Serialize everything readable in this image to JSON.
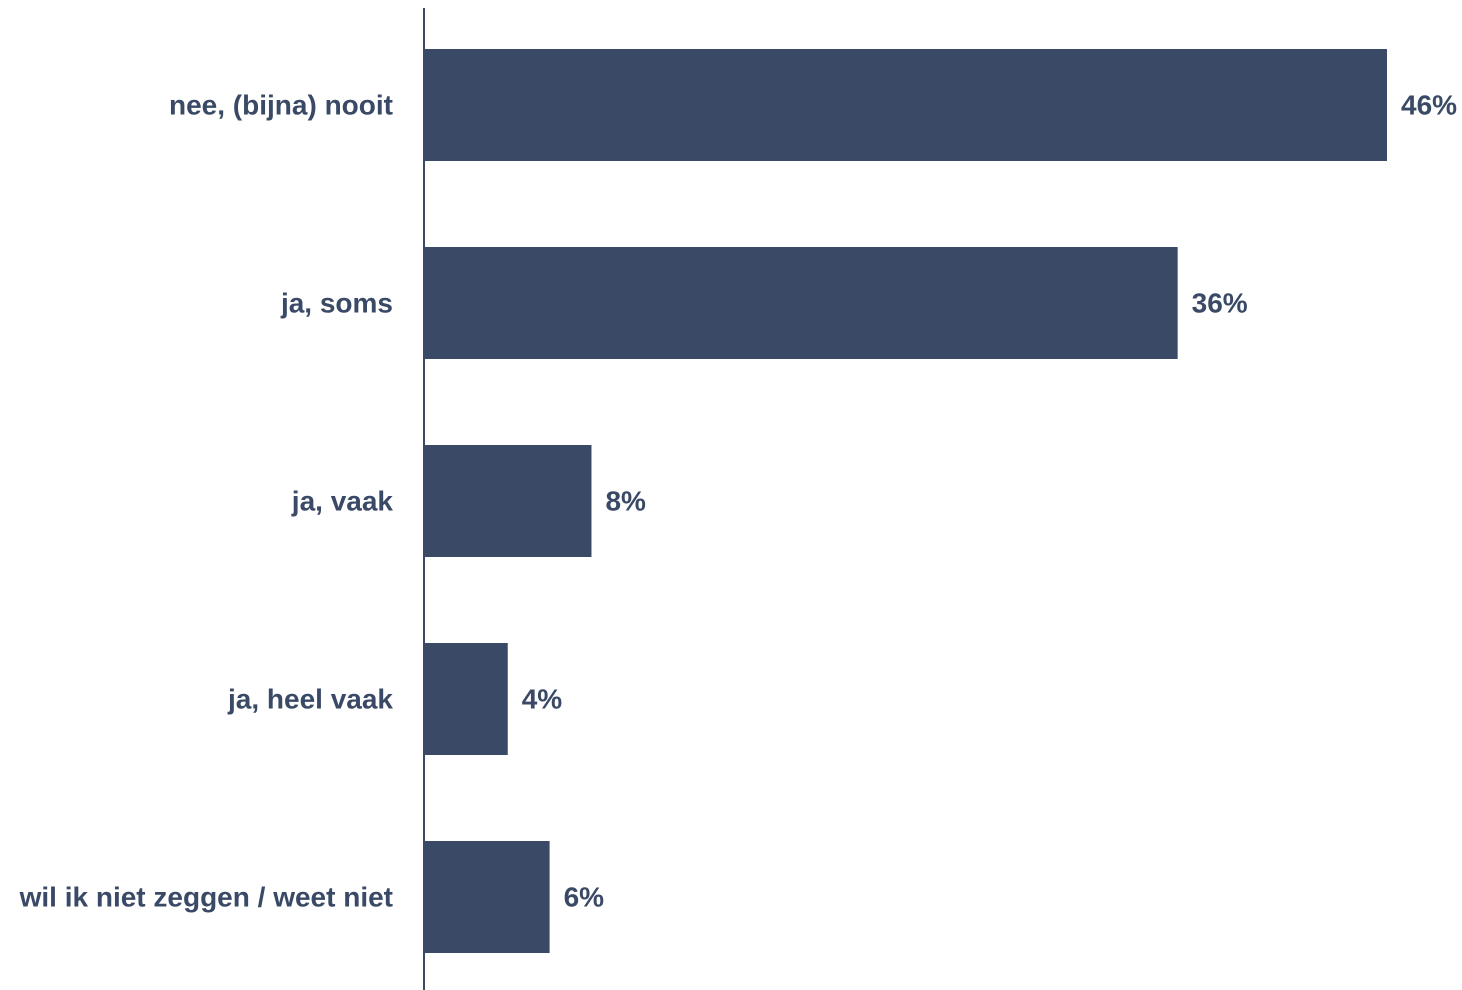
{
  "chart_data": {
    "type": "bar",
    "orientation": "horizontal",
    "categories": [
      "nee, (bijna) nooit",
      "ja, soms",
      "ja, vaak",
      "ja, heel vaak",
      "wil ik niet zeggen / weet niet"
    ],
    "values": [
      46,
      36,
      8,
      4,
      6
    ],
    "value_labels": [
      "46%",
      "36%",
      "8%",
      "4%",
      "6%"
    ],
    "title": "",
    "xlabel": "",
    "ylabel": "",
    "xlim": [
      0,
      50
    ],
    "grid": false,
    "legend": "none",
    "colors": {
      "bar": "#394966",
      "axis": "#394966",
      "text": "#394966"
    }
  }
}
